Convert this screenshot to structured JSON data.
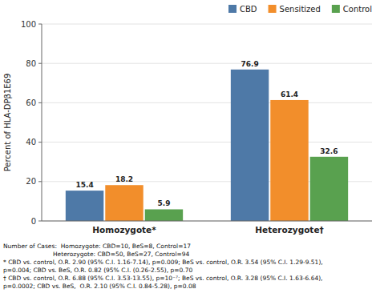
{
  "chart_data": {
    "type": "bar",
    "categories": [
      "Homozygote*",
      "Heterozygote†"
    ],
    "series": [
      {
        "name": "CBD",
        "color": "#4e79a7",
        "values": [
          15.4,
          76.9
        ]
      },
      {
        "name": "Sensitized",
        "color": "#f28e2b",
        "values": [
          18.2,
          61.4
        ]
      },
      {
        "name": "Control",
        "color": "#59a14f",
        "values": [
          5.9,
          32.6
        ]
      }
    ],
    "ylabel": "Percent of HLA-DPβ1E69",
    "ylim": [
      0,
      100
    ],
    "yticks": [
      0,
      20,
      40,
      60,
      80,
      100
    ],
    "grid": true,
    "legend": "upper right",
    "data_labels": true,
    "annotations": [
      "Number of Cases:  Homozygote: CBD=10, BeS=8, Control=17",
      "                          Heterozygote: CBD=50, BeS=27, Control=94",
      "* CBD vs. control, O.R. 2.90 (95% C.I. 1.16-7.14), p=0.009; BeS vs. control, O.R. 3.54 (95% C.I. 1.29-9.51),",
      "p=0.004; CBD vs. BeS, O.R. 0.82 (95% C.I. (0.26-2.55), p=0.70",
      "† CBD vs. control, O.R. 6.88 (95% C.I. 3.53-13.55), p=10⁻⁷; BeS vs. control, O.R. 3.28 (95% C.I. 1.63-6.64),",
      "p=0.0002; CBD vs. BeS,  O.R. 2.10 (95% C.I. 0.84-5.28), p=0.08"
    ]
  }
}
